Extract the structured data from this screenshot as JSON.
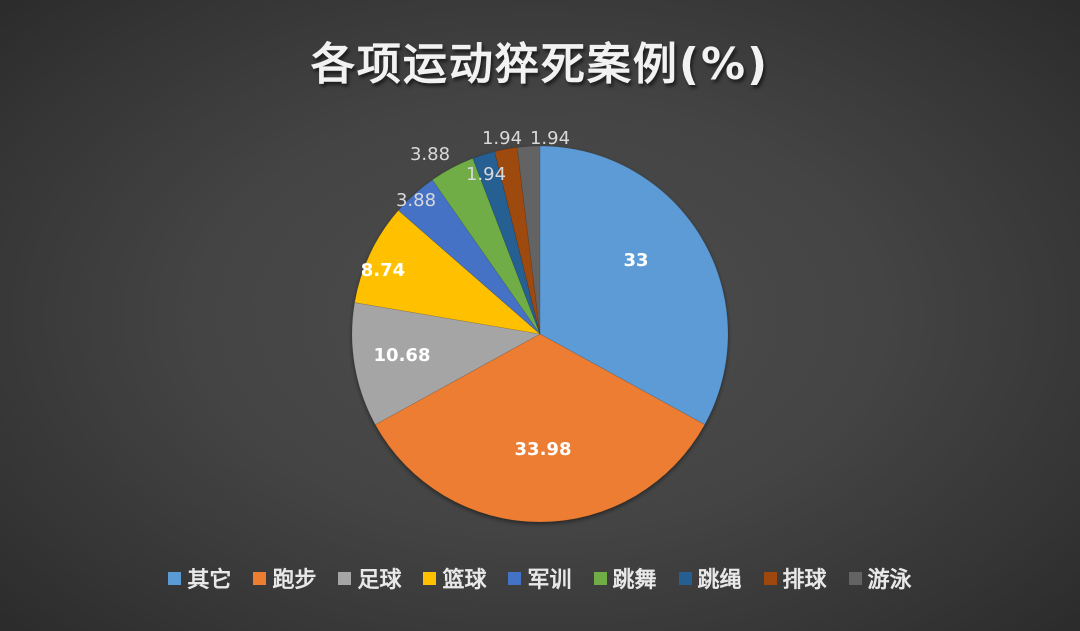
{
  "title": "各项运动猝死案例(%)",
  "chart_data": {
    "type": "pie",
    "title": "各项运动猝死案例(%)",
    "start_angle": "12 o'clock, clockwise",
    "legend_position": "bottom",
    "categories": [
      "其它",
      "跑步",
      "足球",
      "篮球",
      "军训",
      "跳舞",
      "跳绳",
      "排球",
      "游泳"
    ],
    "values": [
      33,
      33.98,
      10.68,
      8.74,
      3.88,
      3.88,
      1.94,
      1.94,
      1.94
    ],
    "labels": [
      "33",
      "33.98",
      "10.68",
      "8.74",
      "3.88",
      "3.88",
      "1.94",
      "1.94",
      "1.94"
    ],
    "colors": [
      "#5b9bd5",
      "#ed7d31",
      "#a5a5a5",
      "#ffc000",
      "#4472c4",
      "#70ad47",
      "#255e91",
      "#9e480e",
      "#636363"
    ]
  },
  "legend": [
    {
      "label": "其它",
      "color": "#5b9bd5"
    },
    {
      "label": "跑步",
      "color": "#ed7d31"
    },
    {
      "label": "足球",
      "color": "#a5a5a5"
    },
    {
      "label": "篮球",
      "color": "#ffc000"
    },
    {
      "label": "军训",
      "color": "#4472c4"
    },
    {
      "label": "跳舞",
      "color": "#70ad47"
    },
    {
      "label": "跳绳",
      "color": "#255e91"
    },
    {
      "label": "排球",
      "color": "#9e480e"
    },
    {
      "label": "游泳",
      "color": "#636363"
    }
  ]
}
